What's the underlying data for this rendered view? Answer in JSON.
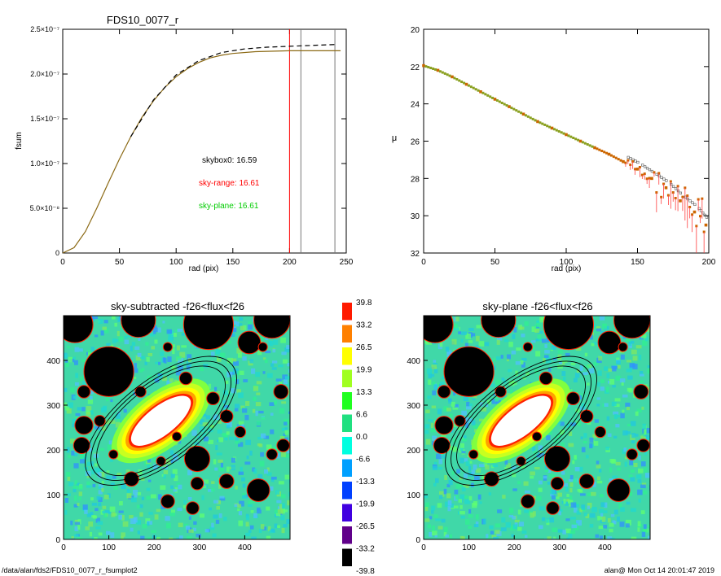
{
  "footer": {
    "left": "/data/alan/fds2/FDS10_0077_r_fsumplot2",
    "right": "alan@  Mon Oct 14 20:01:47 2019"
  },
  "colors": {
    "fsum_curve": "#8B6914",
    "skybox_curve": "#000000",
    "sky_range": "#ff0000",
    "sky_plane": "#00cc00",
    "profile_points": "#cc6600"
  },
  "chart_data": [
    {
      "type": "line",
      "title": "FDS10_0077_r",
      "xlabel": "rad (pix)",
      "ylabel": "fsum",
      "xlim": [
        0,
        250
      ],
      "ylim": [
        0,
        2.5e-07
      ],
      "xticks": [
        "0",
        "50",
        "100",
        "150",
        "200",
        "250"
      ],
      "yticks": [
        "0",
        "5.0×10⁻⁸",
        "1.0×10⁻⁷",
        "1.5×10⁻⁷",
        "2.0×10⁻⁷",
        "2.5×10⁻⁷"
      ],
      "annotations": [
        {
          "text": "skybox0: 16.59",
          "color": "#000000"
        },
        {
          "text": "sky-range: 16.61",
          "color": "#ff0000"
        },
        {
          "text": "sky-plane: 16.61",
          "color": "#00cc00"
        }
      ],
      "vlines": [
        {
          "x": 200,
          "color": "#ff0000"
        },
        {
          "x": 210,
          "color": "#777777"
        },
        {
          "x": 240,
          "color": "#777777"
        }
      ],
      "series": [
        {
          "values": [
            [
              0,
              0
            ],
            [
              10,
              6e-09
            ],
            [
              20,
              2.4e-08
            ],
            [
              30,
              5e-08
            ],
            [
              40,
              7.8e-08
            ],
            [
              50,
              1.05e-07
            ],
            [
              60,
              1.3e-07
            ],
            [
              70,
              1.52e-07
            ],
            [
              80,
              1.7e-07
            ],
            [
              90,
              1.85e-07
            ],
            [
              100,
              1.97e-07
            ],
            [
              110,
              2.06e-07
            ],
            [
              120,
              2.13e-07
            ],
            [
              130,
              2.18e-07
            ],
            [
              140,
              2.21e-07
            ],
            [
              150,
              2.23e-07
            ],
            [
              170,
              2.25e-07
            ],
            [
              200,
              2.26e-07
            ],
            [
              245,
              2.26e-07
            ]
          ],
          "style": "solid",
          "color": "#8B6914"
        },
        {
          "values": [
            [
              60,
              1.3e-07
            ],
            [
              80,
              1.71e-07
            ],
            [
              100,
              1.99e-07
            ],
            [
              120,
              2.15e-07
            ],
            [
              140,
              2.24e-07
            ],
            [
              160,
              2.28e-07
            ],
            [
              180,
              2.3e-07
            ],
            [
              200,
              2.31e-07
            ],
            [
              220,
              2.32e-07
            ],
            [
              240,
              2.33e-07
            ]
          ],
          "style": "dashed",
          "color": "#000000"
        }
      ]
    },
    {
      "type": "scatter",
      "title": "",
      "xlabel": "rad (pix)",
      "ylabel": "μ",
      "xlim": [
        0,
        200
      ],
      "ylim": [
        32,
        20
      ],
      "xticks": [
        "0",
        "50",
        "100",
        "150",
        "200"
      ],
      "yticks": [
        "20",
        "22",
        "24",
        "26",
        "28",
        "30",
        "32"
      ],
      "series": [
        {
          "values": [
            [
              0,
              21.95
            ],
            [
              10,
              22.2
            ],
            [
              20,
              22.55
            ],
            [
              30,
              22.95
            ],
            [
              40,
              23.35
            ],
            [
              50,
              23.75
            ],
            [
              60,
              24.15
            ],
            [
              70,
              24.55
            ],
            [
              80,
              24.95
            ],
            [
              90,
              25.3
            ],
            [
              100,
              25.65
            ],
            [
              110,
              26.0
            ],
            [
              120,
              26.35
            ],
            [
              130,
              26.7
            ],
            [
              140,
              27.1
            ],
            [
              150,
              27.5
            ],
            [
              160,
              28.0
            ],
            [
              170,
              28.5
            ],
            [
              180,
              29.2
            ],
            [
              190,
              29.8
            ],
            [
              198,
              30.5
            ]
          ],
          "color": "#cc6600"
        }
      ]
    },
    {
      "type": "heatmap",
      "title": "sky-subtracted -f26<flux<f26",
      "xlim": [
        0,
        500
      ],
      "ylim": [
        0,
        500
      ],
      "xticks": [
        "0",
        "100",
        "200",
        "300",
        "400"
      ],
      "yticks": [
        "0",
        "100",
        "200",
        "300",
        "400"
      ]
    },
    {
      "type": "heatmap",
      "title": "sky-plane -f26<flux<f26",
      "xlim": [
        0,
        500
      ],
      "ylim": [
        0,
        500
      ],
      "xticks": [
        "0",
        "100",
        "200",
        "300",
        "400"
      ],
      "yticks": [
        "0",
        "100",
        "200",
        "300",
        "400"
      ]
    },
    {
      "type": "table",
      "title": "colorbar",
      "levels": [
        "39.8",
        "33.2",
        "26.5",
        "19.9",
        "13.3",
        "6.6",
        "0.0",
        "-6.6",
        "-13.3",
        "-19.9",
        "-26.5",
        "-33.2",
        "-39.8"
      ],
      "colors": [
        "#ff1a00",
        "#ff8000",
        "#ffff00",
        "#a0ff20",
        "#20ff20",
        "#20e080",
        "#00ffe0",
        "#00a0ff",
        "#0040ff",
        "#4000e0",
        "#60008a",
        "#000000"
      ]
    }
  ]
}
